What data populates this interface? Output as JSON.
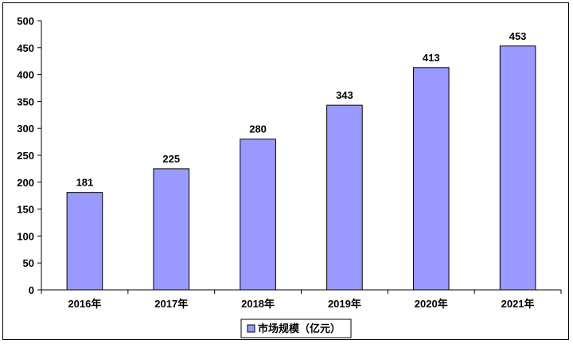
{
  "chart_data": {
    "type": "bar",
    "categories": [
      "2016年",
      "2017年",
      "2018年",
      "2019年",
      "2020年",
      "2021年"
    ],
    "series": [
      {
        "name": "市场规模（亿元）",
        "values": [
          181,
          225,
          280,
          343,
          413,
          453
        ]
      }
    ],
    "ylim": [
      0,
      500
    ],
    "yticks": [
      0,
      50,
      100,
      150,
      200,
      250,
      300,
      350,
      400,
      450,
      500
    ],
    "grid": false,
    "legend": "bottom",
    "colors": {
      "bar": "#9999FF",
      "bar_edge": "#000000",
      "axis": "#000000"
    }
  }
}
